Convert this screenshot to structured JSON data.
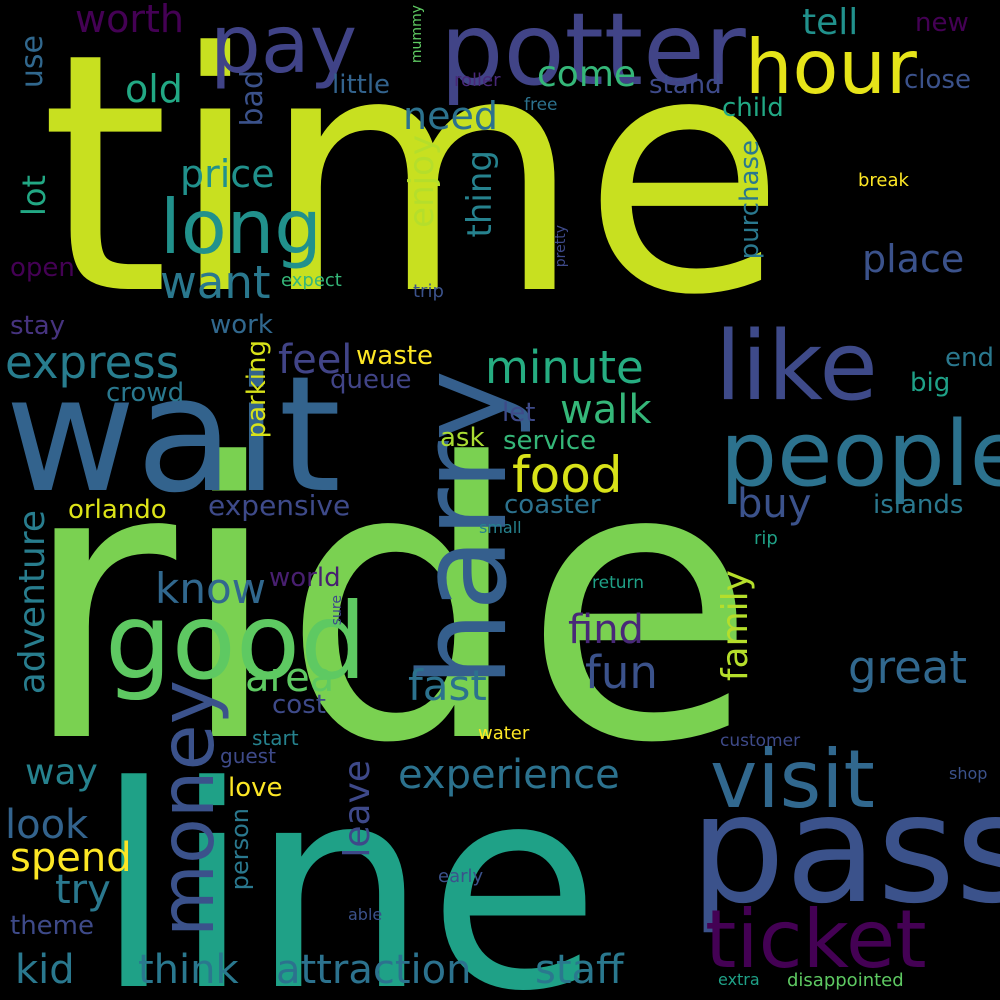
{
  "words": [
    {
      "text": "time",
      "color": "#c8e020"
    },
    {
      "text": "ride",
      "color": "#7ad151"
    },
    {
      "text": "line",
      "color": "#1fa187"
    },
    {
      "text": "wait",
      "color": "#33638d"
    },
    {
      "text": "pass",
      "color": "#3b528b"
    },
    {
      "text": "potter",
      "color": "#414487"
    },
    {
      "text": "harry",
      "color": "#355f8d"
    },
    {
      "text": "good",
      "color": "#5ec962"
    },
    {
      "text": "people",
      "color": "#2c728e"
    },
    {
      "text": "ticket",
      "color": "#440154"
    },
    {
      "text": "like",
      "color": "#3e4a89"
    },
    {
      "text": "visit",
      "color": "#31688e"
    },
    {
      "text": "hour",
      "color": "#e6e419"
    },
    {
      "text": "pay",
      "color": "#404387"
    },
    {
      "text": "long",
      "color": "#21918c"
    },
    {
      "text": "money",
      "color": "#3b528b"
    },
    {
      "text": "food",
      "color": "#d8e219"
    },
    {
      "text": "minute",
      "color": "#26ad81"
    },
    {
      "text": "experience",
      "color": "#2c728e"
    },
    {
      "text": "express",
      "color": "#287d8e"
    },
    {
      "text": "attraction",
      "color": "#2c728e"
    },
    {
      "text": "staff",
      "color": "#2a788e"
    },
    {
      "text": "think",
      "color": "#2a788e"
    },
    {
      "text": "walk",
      "color": "#35b779"
    },
    {
      "text": "want",
      "color": "#2a788e"
    },
    {
      "text": "great",
      "color": "#31688e"
    },
    {
      "text": "fast",
      "color": "#2c728e"
    },
    {
      "text": "fun",
      "color": "#3b528b"
    },
    {
      "text": "find",
      "color": "#482878"
    },
    {
      "text": "buy",
      "color": "#3b528b"
    },
    {
      "text": "area",
      "color": "#5ec962"
    },
    {
      "text": "know",
      "color": "#31688e"
    },
    {
      "text": "spend",
      "color": "#fde725"
    },
    {
      "text": "kid",
      "color": "#2a788e"
    },
    {
      "text": "look",
      "color": "#33638d"
    },
    {
      "text": "try",
      "color": "#2a788e"
    },
    {
      "text": "way",
      "color": "#26828e"
    },
    {
      "text": "family",
      "color": "#b5de2b"
    },
    {
      "text": "adventure",
      "color": "#287d8e"
    },
    {
      "text": "leave",
      "color": "#3e4989"
    },
    {
      "text": "enjoy",
      "color": "#b5de2b"
    },
    {
      "text": "thing",
      "color": "#26828e"
    },
    {
      "text": "place",
      "color": "#3b528b"
    },
    {
      "text": "price",
      "color": "#21918c"
    },
    {
      "text": "old",
      "color": "#22a884"
    },
    {
      "text": "need",
      "color": "#2c728e"
    },
    {
      "text": "come",
      "color": "#35b779"
    },
    {
      "text": "tell",
      "color": "#21918c"
    },
    {
      "text": "worth",
      "color": "#440154"
    },
    {
      "text": "feel",
      "color": "#414487"
    },
    {
      "text": "lot",
      "color": "#22a884"
    },
    {
      "text": "bad",
      "color": "#3b528b"
    },
    {
      "text": "use",
      "color": "#31688e"
    },
    {
      "text": "waste",
      "color": "#fde725"
    },
    {
      "text": "queue",
      "color": "#414487"
    },
    {
      "text": "crowd",
      "color": "#2a788e"
    },
    {
      "text": "work",
      "color": "#31688e"
    },
    {
      "text": "service",
      "color": "#35b779"
    },
    {
      "text": "ask",
      "color": "#aadc32"
    },
    {
      "text": "let",
      "color": "#3e4a89"
    },
    {
      "text": "big",
      "color": "#1fa187"
    },
    {
      "text": "end",
      "color": "#2a788e"
    },
    {
      "text": "orlando",
      "color": "#dde318"
    },
    {
      "text": "expensive",
      "color": "#3e4a89"
    },
    {
      "text": "coaster",
      "color": "#2c728e"
    },
    {
      "text": "islands",
      "color": "#2a788e"
    },
    {
      "text": "small",
      "color": "#26828e"
    },
    {
      "text": "rip",
      "color": "#1fa187"
    },
    {
      "text": "world",
      "color": "#481f70"
    },
    {
      "text": "cost",
      "color": "#3e4a89"
    },
    {
      "text": "parking",
      "color": "#d8e219"
    },
    {
      "text": "love",
      "color": "#fde725"
    },
    {
      "text": "person",
      "color": "#2a788e"
    },
    {
      "text": "start",
      "color": "#26828e"
    },
    {
      "text": "guest",
      "color": "#3e4a89"
    },
    {
      "text": "water",
      "color": "#fde725"
    },
    {
      "text": "customer",
      "color": "#3e4a89"
    },
    {
      "text": "shop",
      "color": "#3b528b"
    },
    {
      "text": "theme",
      "color": "#3e4a89"
    },
    {
      "text": "stay",
      "color": "#46337f"
    },
    {
      "text": "open",
      "color": "#440154"
    },
    {
      "text": "expect",
      "color": "#35b779"
    },
    {
      "text": "trip",
      "color": "#3b528b"
    },
    {
      "text": "pretty",
      "color": "#3e4a89"
    },
    {
      "text": "purchase",
      "color": "#2a788e"
    },
    {
      "text": "break",
      "color": "#fde725"
    },
    {
      "text": "child",
      "color": "#22a884"
    },
    {
      "text": "stand",
      "color": "#3e4a89"
    },
    {
      "text": "free",
      "color": "#2c728e"
    },
    {
      "text": "roller",
      "color": "#482878"
    },
    {
      "text": "little",
      "color": "#33638d"
    },
    {
      "text": "mummy",
      "color": "#5ec962"
    },
    {
      "text": "new",
      "color": "#440154"
    },
    {
      "text": "close",
      "color": "#3b528b"
    },
    {
      "text": "sure",
      "color": "#3e4a89"
    },
    {
      "text": "return",
      "color": "#1fa187"
    },
    {
      "text": "early",
      "color": "#3b528b"
    },
    {
      "text": "able",
      "color": "#3b528b"
    },
    {
      "text": "extra",
      "color": "#1fa187"
    },
    {
      "text": "disappointed",
      "color": "#5ec962"
    }
  ]
}
